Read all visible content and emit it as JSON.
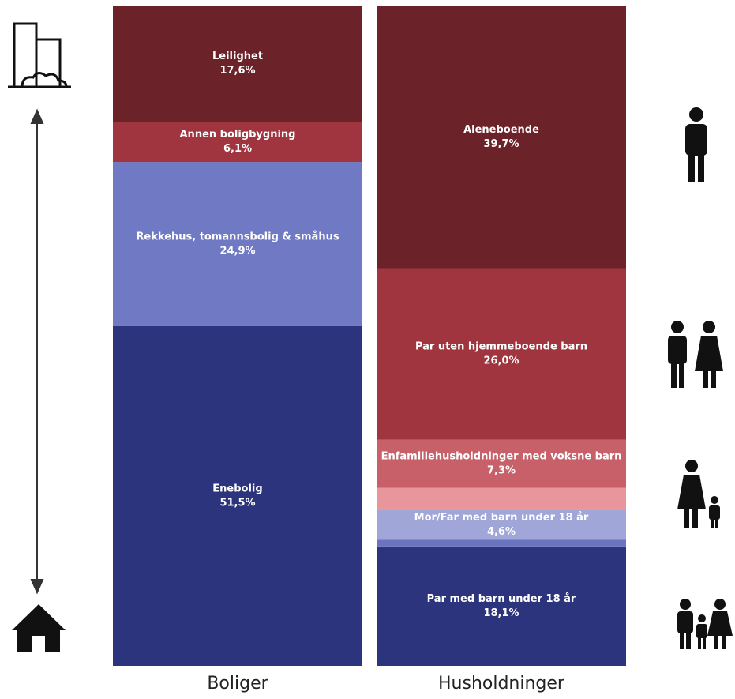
{
  "chart_data": {
    "type": "stacked-column",
    "ylim": [
      0,
      100
    ],
    "columns": [
      {
        "name": "Boliger",
        "segments": [
          {
            "name": "Enebolig",
            "value": 51.5,
            "value_label": "51,5%",
            "color": "#2b347c"
          },
          {
            "name": "Rekkehus, tomannsbolig & småhus",
            "value": 24.9,
            "value_label": "24,9%",
            "color": "#7079c4"
          },
          {
            "name": "Annen boligbygning",
            "value": 6.1,
            "value_label": "6,1%",
            "color": "#a0343f"
          },
          {
            "name": "Leilighet",
            "value": 17.6,
            "value_label": "17,6%",
            "color": "#6b2228"
          }
        ]
      },
      {
        "name": "Husholdninger",
        "segments": [
          {
            "name": "Par med barn under 18 år",
            "value": 18.1,
            "value_label": "18,1%",
            "color": "#2b347c"
          },
          {
            "name": null,
            "value": 1.0,
            "value_label": null,
            "color": "#6a74c0"
          },
          {
            "name": "Mor/Far med barn under 18 år",
            "value": 4.6,
            "value_label": "4,6%",
            "color": "#a0a6d8"
          },
          {
            "name": null,
            "value": 3.3,
            "value_label": null,
            "color": "#e8959b"
          },
          {
            "name": "Enfamiliehusholdninger med voksne barn",
            "value": 7.3,
            "value_label": "7,3%",
            "color": "#c8606a"
          },
          {
            "name": "Par uten hjemmeboende barn",
            "value": 26.0,
            "value_label": "26,0%",
            "color": "#a0343f"
          },
          {
            "name": "Aleneboende",
            "value": 39.7,
            "value_label": "39,7%",
            "color": "#6b2228"
          }
        ]
      }
    ]
  }
}
